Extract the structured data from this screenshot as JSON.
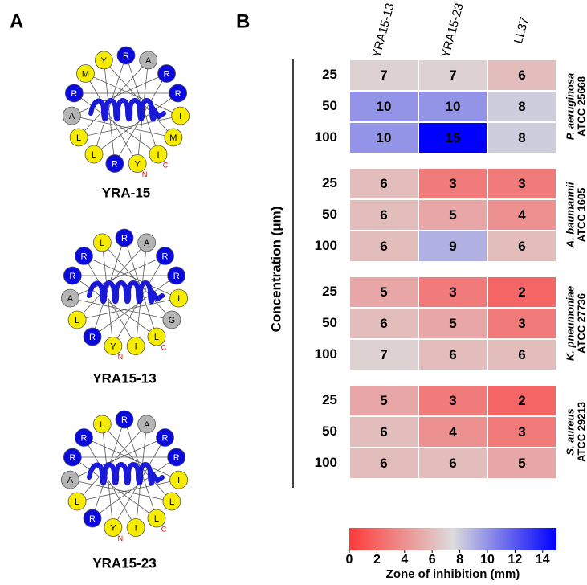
{
  "panel_a": {
    "label": "A",
    "wheels": [
      {
        "name": "YRA-15",
        "residues": [
          {
            "letter": "R"
          },
          {
            "letter": "A"
          },
          {
            "letter": "R"
          },
          {
            "letter": "R"
          },
          {
            "letter": "I"
          },
          {
            "letter": "M"
          },
          {
            "letter": "I",
            "end": "C"
          },
          {
            "letter": "Y",
            "end": "N"
          },
          {
            "letter": "R"
          },
          {
            "letter": "L"
          },
          {
            "letter": "L"
          },
          {
            "letter": "A"
          },
          {
            "letter": "R"
          },
          {
            "letter": "M"
          },
          {
            "letter": "Y"
          }
        ]
      },
      {
        "name": "YRA15-13",
        "residues": [
          {
            "letter": "R"
          },
          {
            "letter": "A"
          },
          {
            "letter": "R"
          },
          {
            "letter": "R"
          },
          {
            "letter": "I"
          },
          {
            "letter": "G"
          },
          {
            "letter": "L",
            "end": "C"
          },
          {
            "letter": "I"
          },
          {
            "letter": "Y",
            "end": "N"
          },
          {
            "letter": "R"
          },
          {
            "letter": "L"
          },
          {
            "letter": "A"
          },
          {
            "letter": "R"
          },
          {
            "letter": "R"
          },
          {
            "letter": "L"
          }
        ]
      },
      {
        "name": "YRA15-23",
        "residues": [
          {
            "letter": "R"
          },
          {
            "letter": "A"
          },
          {
            "letter": "R"
          },
          {
            "letter": "R"
          },
          {
            "letter": "I"
          },
          {
            "letter": "L"
          },
          {
            "letter": "L",
            "end": "C"
          },
          {
            "letter": "I"
          },
          {
            "letter": "Y",
            "end": "N"
          },
          {
            "letter": "R"
          },
          {
            "letter": "L"
          },
          {
            "letter": "A"
          },
          {
            "letter": "R"
          },
          {
            "letter": "R"
          },
          {
            "letter": "L"
          }
        ]
      }
    ]
  },
  "chart_data": {
    "type": "heatmap",
    "panel_label": "B",
    "columns": [
      "YRA15-13",
      "YRA15-23",
      "LL37"
    ],
    "groups": [
      {
        "name": "P. aeruginosa",
        "strain": "ATCC 25668",
        "rows": [
          "25",
          "50",
          "100"
        ],
        "values": [
          [
            7,
            7,
            6
          ],
          [
            10,
            10,
            8
          ],
          [
            10,
            15,
            8
          ]
        ]
      },
      {
        "name": "A. baumannii",
        "strain": "ATCC 1605",
        "rows": [
          "25",
          "50",
          "100"
        ],
        "values": [
          [
            6,
            3,
            3
          ],
          [
            6,
            5,
            4
          ],
          [
            6,
            9,
            6
          ]
        ]
      },
      {
        "name": "K. pneumoniae",
        "strain": "ATCC 27736",
        "rows": [
          "25",
          "50",
          "100"
        ],
        "values": [
          [
            5,
            3,
            2
          ],
          [
            6,
            5,
            3
          ],
          [
            7,
            6,
            6
          ]
        ]
      },
      {
        "name": "S. aureus",
        "strain": "ATCC 29213",
        "rows": [
          "25",
          "50",
          "100"
        ],
        "values": [
          [
            5,
            3,
            2
          ],
          [
            6,
            4,
            3
          ],
          [
            6,
            6,
            5
          ]
        ]
      }
    ],
    "y_label": "Concentration (μm)",
    "x_label": "Zone of inhibition (mm)",
    "clim": [
      0,
      15
    ],
    "cticks": [
      0,
      2,
      4,
      6,
      8,
      10,
      12,
      14
    ],
    "colormap": [
      "#ff3a3a",
      "#dcdcdc",
      "#0000ff"
    ]
  }
}
